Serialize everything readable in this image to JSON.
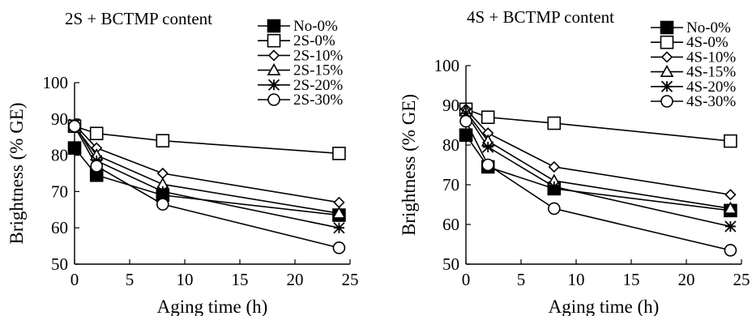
{
  "chart_data": [
    {
      "type": "line",
      "title": "2S + BCTMP content",
      "xlabel": "Aging time (h)",
      "ylabel": "Brightness (% GE)",
      "xlim": [
        0,
        25
      ],
      "ylim": [
        50,
        100
      ],
      "xticks": [
        "0",
        "5",
        "10",
        "15",
        "20",
        "25"
      ],
      "yticks": [
        "50",
        "60",
        "70",
        "80",
        "90",
        "100"
      ],
      "grid": false,
      "legend": "top-right",
      "x": [
        0,
        2,
        8,
        24
      ],
      "series": [
        {
          "name": "No-0%",
          "marker": "square-filled",
          "values": [
            82,
            74.5,
            69,
            63.5
          ]
        },
        {
          "name": "2S-0%",
          "marker": "square-open",
          "values": [
            88,
            86,
            84,
            80.5
          ]
        },
        {
          "name": "2S-10%",
          "marker": "diamond-open",
          "values": [
            88.5,
            82,
            75,
            67
          ]
        },
        {
          "name": "2S-15%",
          "marker": "triangle-open",
          "values": [
            88,
            80,
            72,
            64
          ]
        },
        {
          "name": "2S-20%",
          "marker": "asterisk",
          "values": [
            88.5,
            78.5,
            70,
            60
          ]
        },
        {
          "name": "2S-30%",
          "marker": "circle-open",
          "values": [
            88,
            77,
            66.5,
            54.5
          ]
        }
      ]
    },
    {
      "type": "line",
      "title": "4S + BCTMP content",
      "xlabel": "Aging time (h)",
      "ylabel": "Brightness (% GE)",
      "xlim": [
        0,
        25
      ],
      "ylim": [
        50,
        100
      ],
      "xticks": [
        "0",
        "5",
        "10",
        "15",
        "20",
        "25"
      ],
      "yticks": [
        "50",
        "60",
        "70",
        "80",
        "90",
        "100"
      ],
      "grid": false,
      "legend": "top-right",
      "x": [
        0,
        2,
        8,
        24
      ],
      "series": [
        {
          "name": "No-0%",
          "marker": "square-filled",
          "values": [
            82.5,
            74.5,
            69,
            63.5
          ]
        },
        {
          "name": "4S-0%",
          "marker": "square-open",
          "values": [
            89,
            87,
            85.5,
            81
          ]
        },
        {
          "name": "4S-10%",
          "marker": "diamond-open",
          "values": [
            89,
            83,
            74.5,
            67.5
          ]
        },
        {
          "name": "4S-15%",
          "marker": "triangle-open",
          "values": [
            88.5,
            81,
            71,
            64
          ]
        },
        {
          "name": "4S-20%",
          "marker": "asterisk",
          "values": [
            88,
            79.5,
            69.5,
            59.5
          ]
        },
        {
          "name": "4S-30%",
          "marker": "circle-open",
          "values": [
            86,
            75,
            64,
            53.5
          ]
        }
      ]
    }
  ]
}
